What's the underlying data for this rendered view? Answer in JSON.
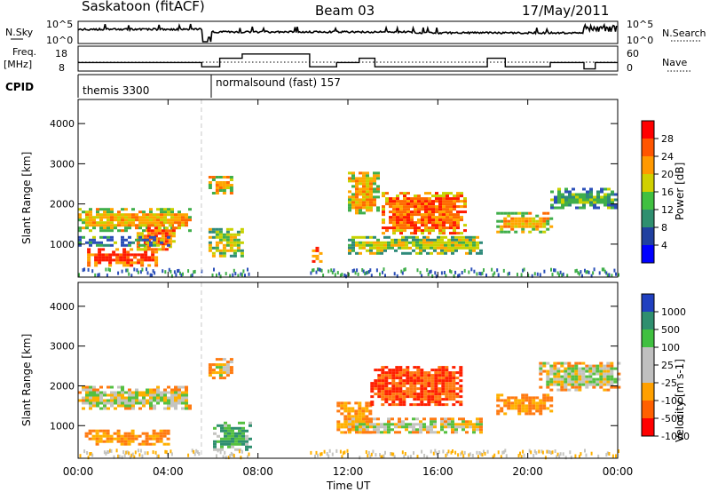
{
  "header": {
    "station": "Saskatoon (fitACF)",
    "beam": "Beam 03",
    "date": "17/May/2011"
  },
  "sky_panel": {
    "left_label": "N.Sky",
    "right_label": "N.Search",
    "tick_top": "10^5",
    "tick_bottom": "10^0"
  },
  "freq_panel": {
    "left_label_1": "Freq.",
    "left_label_2": "[MHz]",
    "right_label": "Nave",
    "left_ticks": [
      "18",
      "8"
    ],
    "right_ticks": [
      "60",
      "0"
    ]
  },
  "cpid": {
    "label": "CPID",
    "programs": [
      "themis 3300",
      "normalsound (fast) 157"
    ]
  },
  "power_panel": {
    "ylabel": "Slant Range [km]",
    "yticks": [
      "4000",
      "3000",
      "2000",
      "1000"
    ],
    "colorbar_label": "Power [dB]",
    "colorbar_ticks": [
      "28",
      "24",
      "20",
      "16",
      "12",
      "8",
      "4"
    ],
    "colorbar_colors": [
      "#ff0000",
      "#ff5500",
      "#ff9900",
      "#d0d000",
      "#40c040",
      "#2f8f6f",
      "#2040a0",
      "#0000ff"
    ]
  },
  "velocity_panel": {
    "ylabel": "Slant Range [km]",
    "yticks": [
      "4000",
      "3000",
      "2000",
      "1000"
    ],
    "colorbar_label": "Velocity [m s-1]",
    "colorbar_ticks": [
      "1000",
      "500",
      "100",
      "25",
      "-25",
      "-100",
      "-500",
      "-1000"
    ],
    "colorbar_colors": [
      "#2040c0",
      "#2f8f6f",
      "#40c040",
      "#c0c0c0",
      "#c0c0c0",
      "#ffa000",
      "#ff6000",
      "#ff0000"
    ]
  },
  "xaxis": {
    "label": "Time UT",
    "ticks": [
      "00:00",
      "04:00",
      "08:00",
      "12:00",
      "16:00",
      "20:00",
      "00:00"
    ]
  },
  "chart_data": {
    "type": "heatmap",
    "x_range_hours": [
      0,
      24
    ],
    "y_range_km": [
      180,
      4600
    ],
    "power_regions": [
      {
        "t0": 0.0,
        "t1": 5.0,
        "r0": 1350,
        "r1": 1900,
        "level": 20
      },
      {
        "t0": 0.4,
        "t1": 3.5,
        "r0": 500,
        "r1": 900,
        "level": 28
      },
      {
        "t0": 2.6,
        "t1": 4.3,
        "r0": 900,
        "r1": 1500,
        "level": 24
      },
      {
        "t0": 0.0,
        "t1": 4.0,
        "r0": 1000,
        "r1": 1200,
        "level": 12
      },
      {
        "t0": 5.8,
        "t1": 6.9,
        "r0": 2300,
        "r1": 2700,
        "level": 20
      },
      {
        "t0": 5.8,
        "t1": 7.3,
        "r0": 700,
        "r1": 1400,
        "level": 16
      },
      {
        "t0": 10.4,
        "t1": 10.8,
        "r0": 600,
        "r1": 1000,
        "level": 28
      },
      {
        "t0": 12.0,
        "t1": 13.3,
        "r0": 1800,
        "r1": 2800,
        "level": 20
      },
      {
        "t0": 13.5,
        "t1": 17.2,
        "r0": 1300,
        "r1": 2300,
        "level": 24
      },
      {
        "t0": 12.0,
        "t1": 18.0,
        "r0": 800,
        "r1": 1200,
        "level": 16
      },
      {
        "t0": 18.6,
        "t1": 21.0,
        "r0": 1300,
        "r1": 1800,
        "level": 20
      },
      {
        "t0": 21.0,
        "t1": 24.0,
        "r0": 1900,
        "r1": 2400,
        "level": 12
      }
    ],
    "velocity_regions": [
      {
        "t0": 0.0,
        "t1": 5.0,
        "r0": 1400,
        "r1": 2000,
        "level": 0
      },
      {
        "t0": 0.3,
        "t1": 4.0,
        "r0": 500,
        "r1": 900,
        "level": -100
      },
      {
        "t0": 5.8,
        "t1": 6.9,
        "r0": 2200,
        "r1": 2700,
        "level": 0
      },
      {
        "t0": 6.0,
        "t1": 7.6,
        "r0": 400,
        "r1": 1100,
        "level": 100
      },
      {
        "t0": 11.5,
        "t1": 13.0,
        "r0": 800,
        "r1": 1600,
        "level": -100
      },
      {
        "t0": 13.0,
        "t1": 17.0,
        "r0": 1500,
        "r1": 2500,
        "level": -500
      },
      {
        "t0": 12.0,
        "t1": 18.0,
        "r0": 800,
        "r1": 1200,
        "level": 0
      },
      {
        "t0": 18.6,
        "t1": 21.0,
        "r0": 1300,
        "r1": 1800,
        "level": -100
      },
      {
        "t0": 20.5,
        "t1": 24.0,
        "r0": 1900,
        "r1": 2600,
        "level": 0
      }
    ],
    "frequency_steps_mhz": [
      {
        "t0": 0.0,
        "t1": 5.5,
        "v": 12
      },
      {
        "t0": 5.5,
        "t1": 6.3,
        "v": 10
      },
      {
        "t0": 6.3,
        "t1": 7.3,
        "v": 14
      },
      {
        "t0": 7.3,
        "t1": 10.3,
        "v": 16
      },
      {
        "t0": 10.3,
        "t1": 11.5,
        "v": 10
      },
      {
        "t0": 11.5,
        "t1": 12.5,
        "v": 12
      },
      {
        "t0": 12.5,
        "t1": 13.2,
        "v": 14
      },
      {
        "t0": 13.2,
        "t1": 18.2,
        "v": 10
      },
      {
        "t0": 18.2,
        "t1": 19.0,
        "v": 14
      },
      {
        "t0": 19.0,
        "t1": 21.0,
        "v": 10
      },
      {
        "t0": 21.0,
        "t1": 22.5,
        "v": 12
      },
      {
        "t0": 22.5,
        "t1": 23.0,
        "v": 9
      },
      {
        "t0": 23.0,
        "t1": 24.0,
        "v": 12
      }
    ],
    "cpid_changes_hours": [
      5.8
    ]
  }
}
